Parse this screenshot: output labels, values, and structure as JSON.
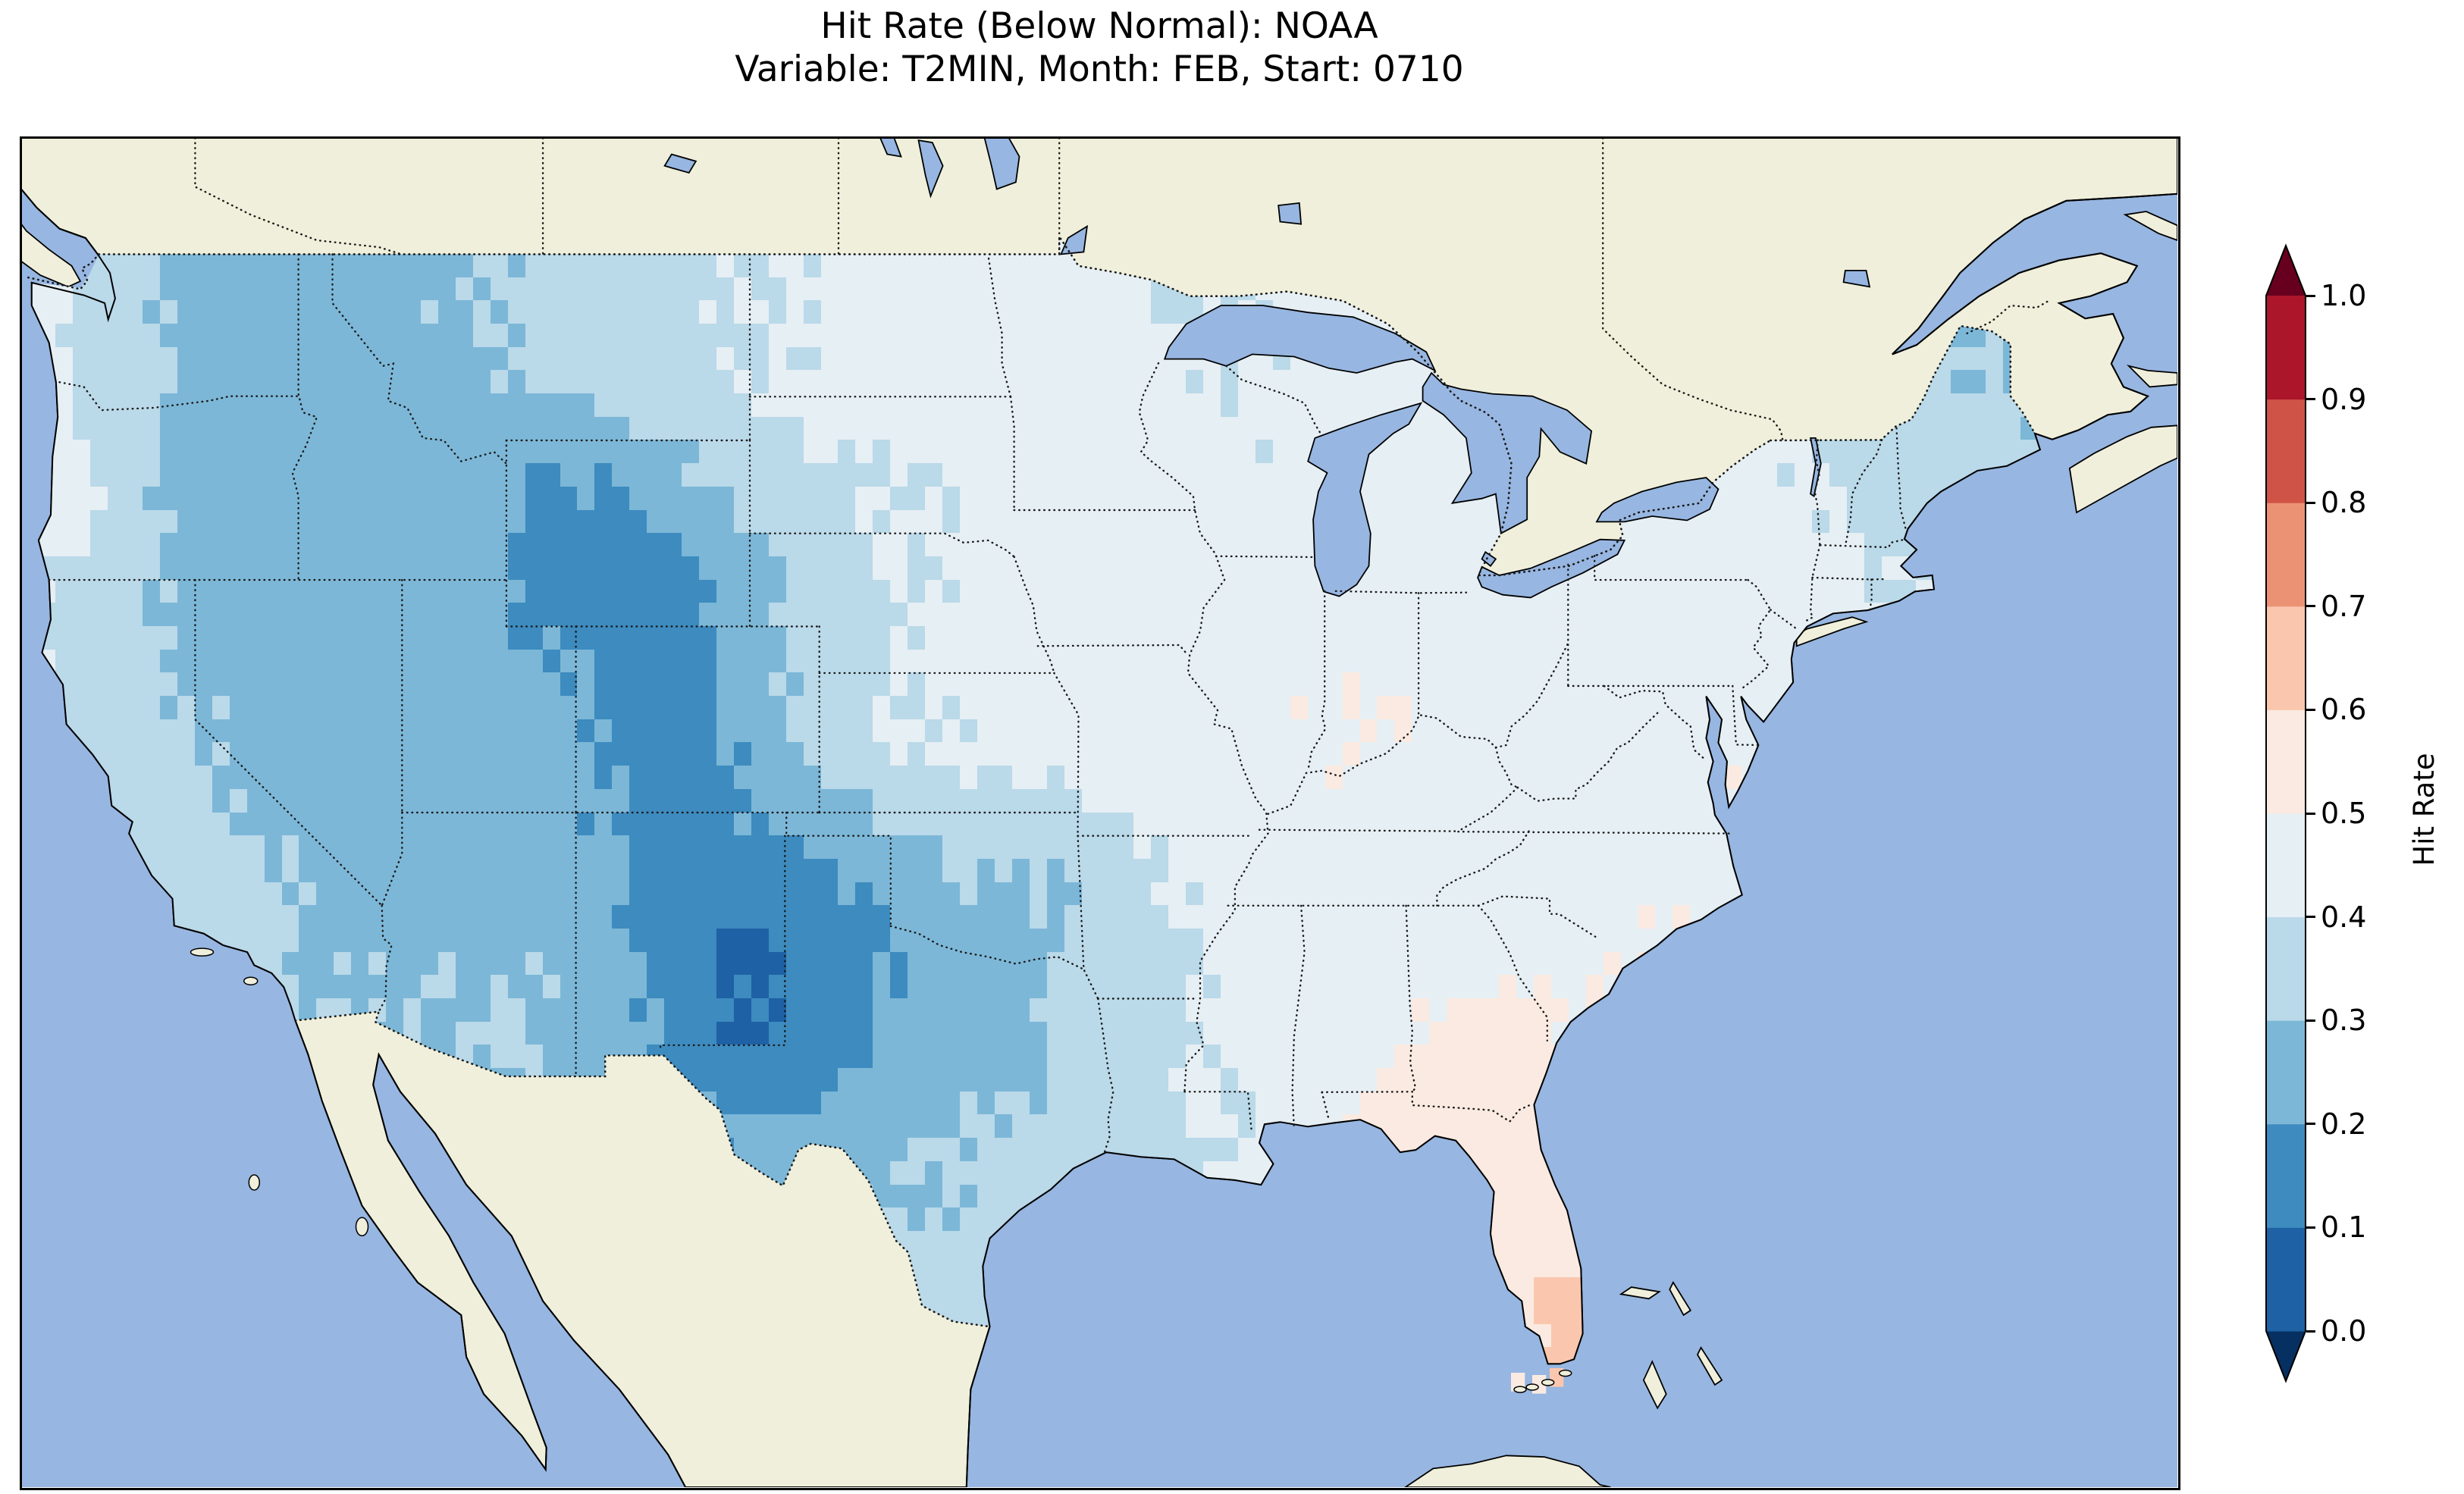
{
  "figure": {
    "title_line1": "Hit Rate (Below Normal): NOAA",
    "title_line2": "Variable: T2MIN, Month: FEB, Start: 0710"
  },
  "colorbar": {
    "label": "Hit Rate",
    "ticks": [
      "0.0",
      "0.1",
      "0.2",
      "0.3",
      "0.4",
      "0.5",
      "0.6",
      "0.7",
      "0.8",
      "0.9",
      "1.0"
    ],
    "bin_colors_low_to_high": [
      "#1e61a5",
      "#3d8bbf",
      "#7cb7d7",
      "#bad9e9",
      "#e6eff4",
      "#faeae1",
      "#fac7ae",
      "#ec9274",
      "#cf5347",
      "#ab162a"
    ],
    "under_arrow_color": "#053061",
    "over_arrow_color": "#67001f"
  },
  "map": {
    "ocean_color": "#97b6e1",
    "land_color": "#efefdb",
    "lake_color": "#97b6e1",
    "coastline_color": "#000000",
    "border_color": "#1a1a1a",
    "extent": {
      "lon_min": -125,
      "lon_max": -63,
      "lat_min": 22.5,
      "lat_max": 51.5
    }
  },
  "chart_data": {
    "type": "heatmap",
    "title": "Hit Rate (Below Normal): NOAA",
    "subtitle": "Variable: T2MIN, Month: FEB, Start: 0710",
    "colorbar_label": "Hit Rate",
    "colorbar_ticks": [
      0.0,
      0.1,
      0.2,
      0.3,
      0.4,
      0.5,
      0.6,
      0.7,
      0.8,
      0.9,
      1.0
    ],
    "value_bins": [
      0.0,
      0.1,
      0.2,
      0.3,
      0.4,
      0.5,
      0.6,
      0.7,
      0.8,
      0.9,
      1.0
    ],
    "grid": {
      "cell_size_deg": 2,
      "lon_centers": [
        -124,
        -122,
        -120,
        -118,
        -116,
        -114,
        -112,
        -110,
        -108,
        -106,
        -104,
        -102,
        -100,
        -98,
        -96,
        -94,
        -92,
        -90,
        -88,
        -86,
        -84,
        -82,
        -80,
        -78,
        -76,
        -74,
        -72,
        -70,
        -68
      ],
      "lat_centers": [
        48,
        46,
        44,
        42,
        40,
        38,
        36,
        34,
        32,
        30,
        28,
        26
      ],
      "hit_rate_values": [
        [
          0.4,
          0.32,
          0.27,
          0.27,
          0.25,
          0.28,
          0.3,
          0.33,
          0.35,
          0.38,
          0.4,
          0.42,
          0.42,
          0.43,
          0.44,
          0.45,
          0.38,
          0.4,
          0.42,
          0.45,
          0.45,
          0.42,
          0.42,
          0.42,
          0.4,
          0.38,
          0.35,
          0.28,
          0.3
        ],
        [
          0.42,
          0.35,
          0.27,
          0.25,
          0.24,
          0.25,
          0.28,
          0.3,
          0.34,
          0.36,
          0.4,
          0.42,
          0.43,
          0.43,
          0.45,
          0.45,
          0.43,
          0.41,
          0.42,
          0.5,
          0.45,
          0.43,
          0.43,
          0.42,
          0.42,
          0.42,
          0.36,
          0.32,
          0.3
        ],
        [
          0.45,
          0.35,
          0.25,
          0.23,
          0.22,
          0.22,
          0.25,
          0.18,
          0.2,
          0.27,
          0.35,
          0.38,
          0.4,
          0.42,
          0.44,
          0.46,
          0.45,
          0.42,
          0.42,
          0.44,
          0.45,
          0.44,
          0.44,
          0.44,
          0.44,
          0.42,
          0.38,
          0.36,
          0.35
        ],
        [
          0.4,
          0.32,
          0.28,
          0.25,
          0.24,
          0.24,
          0.25,
          0.15,
          0.12,
          0.15,
          0.28,
          0.35,
          0.4,
          0.42,
          0.45,
          0.46,
          0.46,
          0.45,
          0.45,
          0.46,
          0.47,
          0.46,
          0.45,
          0.45,
          0.45,
          0.43,
          0.4,
          0.38,
          0.38
        ],
        [
          0.38,
          0.33,
          0.28,
          0.26,
          0.25,
          0.24,
          0.22,
          0.22,
          0.2,
          0.15,
          0.25,
          0.35,
          0.4,
          0.42,
          0.44,
          0.46,
          0.46,
          0.47,
          0.48,
          0.5,
          0.48,
          0.47,
          0.46,
          0.45,
          0.46,
          0.44,
          0.42,
          0.4,
          0.4
        ],
        [
          0.38,
          0.36,
          0.32,
          0.27,
          0.25,
          0.25,
          0.24,
          0.23,
          0.2,
          0.12,
          0.22,
          0.32,
          0.38,
          0.4,
          0.42,
          0.45,
          0.46,
          0.47,
          0.5,
          0.48,
          0.47,
          0.46,
          0.45,
          0.46,
          0.5,
          0.45,
          0.45,
          0.45,
          0.45
        ],
        [
          0.35,
          0.35,
          0.33,
          0.3,
          0.27,
          0.27,
          0.27,
          0.25,
          0.2,
          0.18,
          0.18,
          0.18,
          0.25,
          0.32,
          0.3,
          0.33,
          0.42,
          0.45,
          0.46,
          0.46,
          0.46,
          0.45,
          0.46,
          0.46,
          0.47,
          0.45,
          0.45,
          0.45,
          0.45
        ],
        [
          0.35,
          0.35,
          0.35,
          0.32,
          0.28,
          0.28,
          0.28,
          0.3,
          0.22,
          0.15,
          0.08,
          0.12,
          0.2,
          0.25,
          0.28,
          0.33,
          0.38,
          0.42,
          0.43,
          0.44,
          0.46,
          0.47,
          0.48,
          0.5,
          0.47,
          0.45,
          0.45,
          0.45,
          0.45
        ],
        [
          0.35,
          0.35,
          0.33,
          0.3,
          0.3,
          0.3,
          0.3,
          0.3,
          0.25,
          0.18,
          0.08,
          0.15,
          0.22,
          0.25,
          0.28,
          0.35,
          0.38,
          0.42,
          0.45,
          0.48,
          0.52,
          0.53,
          0.5,
          0.5,
          0.48,
          0.46,
          0.46,
          0.46,
          0.46
        ],
        [
          0.35,
          0.35,
          0.34,
          0.32,
          0.31,
          0.3,
          0.3,
          0.3,
          0.26,
          0.2,
          0.22,
          0.25,
          0.28,
          0.3,
          0.33,
          0.36,
          0.38,
          0.4,
          0.48,
          0.53,
          0.54,
          0.55,
          0.52,
          0.5,
          0.48,
          0.47,
          0.47,
          0.47,
          0.47
        ],
        [
          0.35,
          0.35,
          0.34,
          0.33,
          0.32,
          0.31,
          0.3,
          0.3,
          0.28,
          0.25,
          0.26,
          0.28,
          0.3,
          0.32,
          0.33,
          0.36,
          0.4,
          0.42,
          0.48,
          0.52,
          0.54,
          0.55,
          0.56,
          0.52,
          0.5,
          0.48,
          0.48,
          0.48,
          0.48
        ],
        [
          0.35,
          0.35,
          0.34,
          0.33,
          0.32,
          0.31,
          0.3,
          0.3,
          0.29,
          0.28,
          0.28,
          0.3,
          0.33,
          0.35,
          0.36,
          0.38,
          0.42,
          0.45,
          0.5,
          0.55,
          0.58,
          0.6,
          0.63,
          0.55,
          0.52,
          0.5,
          0.5,
          0.5,
          0.5
        ]
      ]
    },
    "extra_cells": [
      {
        "lon": -81.95,
        "lat": 24.75,
        "value": 0.58
      },
      {
        "lon": -81.35,
        "lat": 24.7,
        "value": 0.55
      },
      {
        "lon": -80.85,
        "lat": 24.85,
        "value": 0.6
      }
    ]
  }
}
